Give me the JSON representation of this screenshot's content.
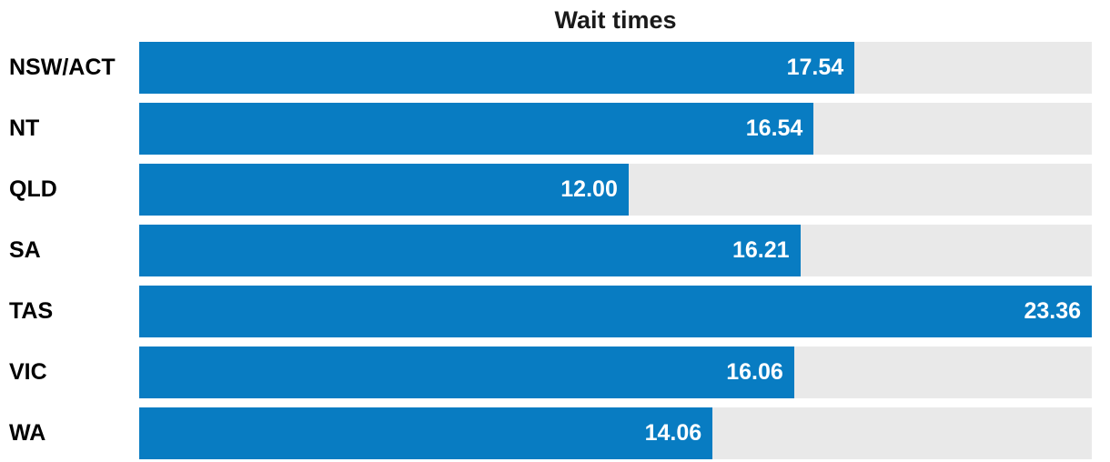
{
  "chart_data": {
    "type": "bar",
    "orientation": "horizontal",
    "title": "Wait times",
    "categories": [
      "NSW/ACT",
      "NT",
      "QLD",
      "SA",
      "TAS",
      "VIC",
      "WA"
    ],
    "values": [
      17.54,
      16.54,
      12.0,
      16.21,
      23.36,
      16.06,
      14.06
    ],
    "values_formatted": [
      "17.54",
      "16.54",
      "12.00",
      "16.21",
      "23.36",
      "16.06",
      "14.06"
    ],
    "xmax": 23.36,
    "xlabel": "",
    "ylabel": "",
    "grid": false,
    "legend": false,
    "value_labels": "inside-right",
    "bar_color": "#087cc2",
    "track_color": "#e9e9e9",
    "value_label_color": "#ffffff",
    "category_label_color": "#000000",
    "title_color": "#1a1a1a"
  }
}
